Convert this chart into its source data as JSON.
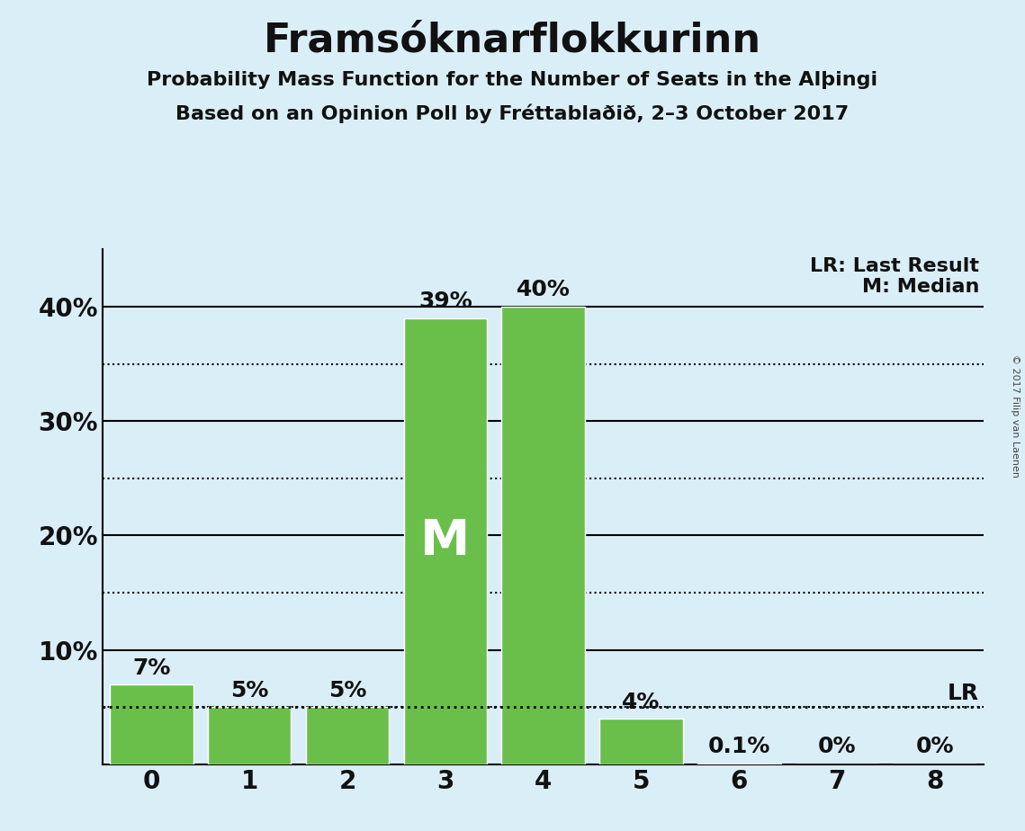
{
  "title": "Framsóknarflokkurinn",
  "subtitle1": "Probability Mass Function for the Number of Seats in the Alþingi",
  "subtitle2": "Based on an Opinion Poll by Fréttablaðið, 2–3 October 2017",
  "categories": [
    0,
    1,
    2,
    3,
    4,
    5,
    6,
    7,
    8
  ],
  "values": [
    0.07,
    0.05,
    0.05,
    0.39,
    0.4,
    0.04,
    0.001,
    0.0,
    0.0
  ],
  "bar_labels": [
    "7%",
    "5%",
    "5%",
    "39%",
    "40%",
    "4%",
    "0.1%",
    "0%",
    "0%"
  ],
  "bar_color": "#6abf4b",
  "background_color": "#daeef8",
  "text_color": "#111111",
  "median_bar": 3,
  "median_label": "M",
  "lr_value": 0.05,
  "lr_label": "LR",
  "legend_lr": "LR: Last Result",
  "legend_m": "M: Median",
  "ylim": [
    0,
    0.45
  ],
  "yticks": [
    0.0,
    0.1,
    0.2,
    0.3,
    0.4
  ],
  "ytick_labels": [
    "",
    "10%",
    "20%",
    "30%",
    "40%"
  ],
  "dotted_yticks": [
    0.05,
    0.15,
    0.25,
    0.35
  ],
  "solid_yticks": [
    0.1,
    0.2,
    0.3,
    0.4
  ],
  "copyright_text": "© 2017 Filip van Laenen",
  "title_fontsize": 32,
  "subtitle_fontsize": 16,
  "tick_fontsize": 20,
  "label_fontsize": 18,
  "legend_fontsize": 16,
  "median_fontsize": 40
}
